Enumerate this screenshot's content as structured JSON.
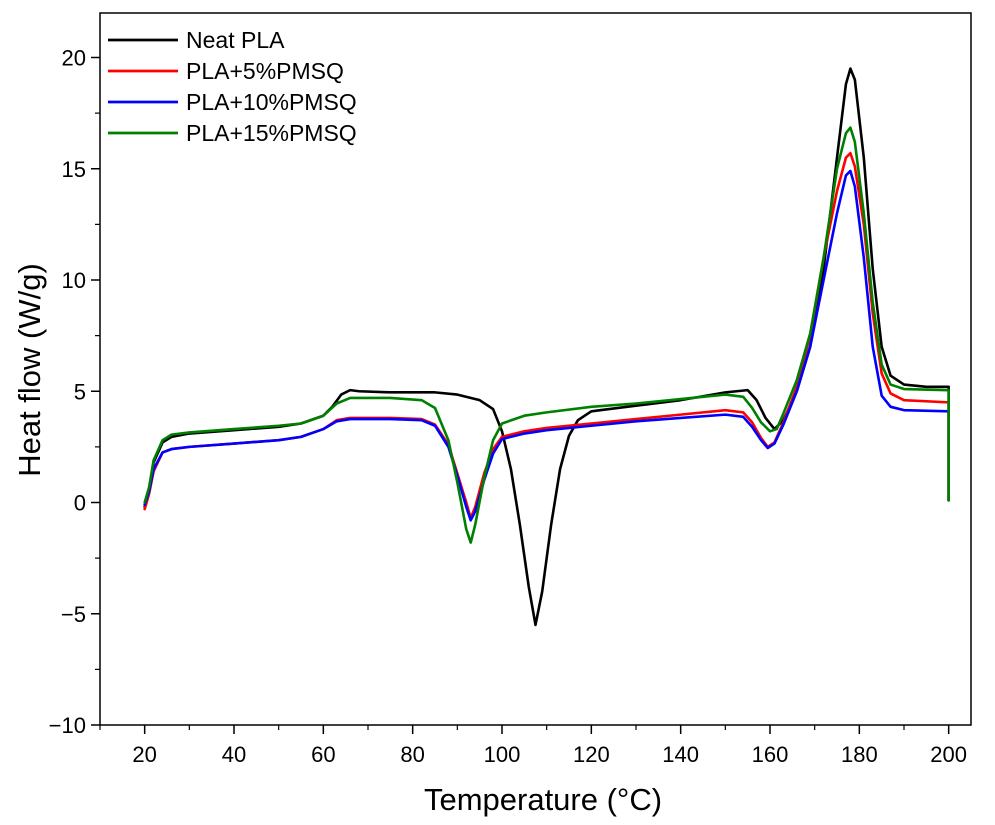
{
  "chart_data": {
    "type": "line",
    "xlabel": "Temperature (°C)",
    "ylabel": "Heat flow (W/g)",
    "xlim": [
      10,
      205
    ],
    "ylim": [
      -10,
      22
    ],
    "xticks": [
      20,
      40,
      60,
      80,
      100,
      120,
      140,
      160,
      180,
      200
    ],
    "xtick_labels": [
      "20",
      "40",
      "60",
      "80",
      "100",
      "120",
      "140",
      "160",
      "180",
      "200"
    ],
    "yticks": [
      -10,
      -5,
      0,
      5,
      10,
      15,
      20
    ],
    "ytick_labels": [
      "−10",
      "−5",
      "0",
      "5",
      "10",
      "15",
      "20"
    ],
    "legend_position": "top-left",
    "grid": false,
    "series": [
      {
        "name": "Neat PLA",
        "color": "#000000",
        "points": [
          [
            20,
            -0.2
          ],
          [
            21,
            0.5
          ],
          [
            22,
            1.8
          ],
          [
            24,
            2.7
          ],
          [
            26,
            2.95
          ],
          [
            30,
            3.1
          ],
          [
            40,
            3.25
          ],
          [
            50,
            3.4
          ],
          [
            55,
            3.55
          ],
          [
            60,
            3.9
          ],
          [
            62,
            4.3
          ],
          [
            64,
            4.85
          ],
          [
            66,
            5.05
          ],
          [
            68,
            5.0
          ],
          [
            75,
            4.95
          ],
          [
            85,
            4.95
          ],
          [
            90,
            4.85
          ],
          [
            95,
            4.6
          ],
          [
            98,
            4.2
          ],
          [
            100,
            3.2
          ],
          [
            102,
            1.5
          ],
          [
            104,
            -1.0
          ],
          [
            106,
            -3.8
          ],
          [
            107.5,
            -5.5
          ],
          [
            109,
            -4.0
          ],
          [
            111,
            -1.0
          ],
          [
            113,
            1.5
          ],
          [
            115,
            3.0
          ],
          [
            117,
            3.7
          ],
          [
            120,
            4.1
          ],
          [
            130,
            4.35
          ],
          [
            140,
            4.6
          ],
          [
            150,
            4.95
          ],
          [
            155,
            5.05
          ],
          [
            157,
            4.6
          ],
          [
            159,
            3.8
          ],
          [
            161,
            3.3
          ],
          [
            163,
            3.7
          ],
          [
            166,
            5.0
          ],
          [
            169,
            7.0
          ],
          [
            172,
            10.5
          ],
          [
            175,
            15.5
          ],
          [
            177,
            18.8
          ],
          [
            178,
            19.5
          ],
          [
            179,
            19.0
          ],
          [
            181,
            15.5
          ],
          [
            183,
            10.5
          ],
          [
            185,
            7.0
          ],
          [
            187,
            5.7
          ],
          [
            190,
            5.3
          ],
          [
            195,
            5.2
          ],
          [
            200,
            5.2
          ],
          [
            200,
            0.1
          ]
        ]
      },
      {
        "name": "PLA+5%PMSQ",
        "color": "#ff0000",
        "points": [
          [
            20,
            -0.3
          ],
          [
            21,
            0.4
          ],
          [
            22,
            1.4
          ],
          [
            24,
            2.25
          ],
          [
            26,
            2.4
          ],
          [
            30,
            2.5
          ],
          [
            40,
            2.65
          ],
          [
            50,
            2.8
          ],
          [
            55,
            2.95
          ],
          [
            60,
            3.3
          ],
          [
            63,
            3.7
          ],
          [
            66,
            3.8
          ],
          [
            75,
            3.8
          ],
          [
            82,
            3.75
          ],
          [
            85,
            3.5
          ],
          [
            88,
            2.6
          ],
          [
            90,
            1.3
          ],
          [
            92,
            0.0
          ],
          [
            93,
            -0.7
          ],
          [
            94,
            -0.2
          ],
          [
            96,
            1.3
          ],
          [
            98,
            2.4
          ],
          [
            100,
            2.95
          ],
          [
            105,
            3.2
          ],
          [
            110,
            3.35
          ],
          [
            120,
            3.55
          ],
          [
            130,
            3.75
          ],
          [
            140,
            3.95
          ],
          [
            150,
            4.15
          ],
          [
            154,
            4.05
          ],
          [
            156,
            3.6
          ],
          [
            158,
            2.9
          ],
          [
            159.5,
            2.5
          ],
          [
            161,
            2.7
          ],
          [
            163,
            3.6
          ],
          [
            166,
            5.2
          ],
          [
            169,
            7.5
          ],
          [
            172,
            11.0
          ],
          [
            175,
            14.0
          ],
          [
            177,
            15.5
          ],
          [
            178,
            15.7
          ],
          [
            179,
            15.1
          ],
          [
            181,
            12.5
          ],
          [
            183,
            8.5
          ],
          [
            185,
            5.8
          ],
          [
            187,
            4.9
          ],
          [
            190,
            4.6
          ],
          [
            200,
            4.5
          ],
          [
            200,
            0.1
          ]
        ]
      },
      {
        "name": "PLA+10%PMSQ",
        "color": "#0000ff",
        "points": [
          [
            20,
            -0.1
          ],
          [
            21,
            0.5
          ],
          [
            22,
            1.5
          ],
          [
            24,
            2.25
          ],
          [
            26,
            2.4
          ],
          [
            30,
            2.5
          ],
          [
            40,
            2.65
          ],
          [
            50,
            2.8
          ],
          [
            55,
            2.95
          ],
          [
            60,
            3.3
          ],
          [
            63,
            3.65
          ],
          [
            66,
            3.75
          ],
          [
            75,
            3.75
          ],
          [
            82,
            3.7
          ],
          [
            85,
            3.45
          ],
          [
            88,
            2.5
          ],
          [
            90,
            1.2
          ],
          [
            92,
            -0.2
          ],
          [
            93,
            -0.8
          ],
          [
            94,
            -0.4
          ],
          [
            96,
            1.0
          ],
          [
            98,
            2.2
          ],
          [
            100,
            2.85
          ],
          [
            105,
            3.1
          ],
          [
            110,
            3.25
          ],
          [
            120,
            3.45
          ],
          [
            130,
            3.65
          ],
          [
            140,
            3.8
          ],
          [
            150,
            3.95
          ],
          [
            154,
            3.85
          ],
          [
            156,
            3.4
          ],
          [
            158,
            2.8
          ],
          [
            159.5,
            2.45
          ],
          [
            161,
            2.65
          ],
          [
            163,
            3.5
          ],
          [
            166,
            5.0
          ],
          [
            169,
            7.0
          ],
          [
            172,
            10.0
          ],
          [
            175,
            13.0
          ],
          [
            177,
            14.7
          ],
          [
            178,
            14.9
          ],
          [
            179,
            14.2
          ],
          [
            181,
            11.0
          ],
          [
            183,
            7.0
          ],
          [
            185,
            4.8
          ],
          [
            187,
            4.3
          ],
          [
            190,
            4.15
          ],
          [
            200,
            4.1
          ],
          [
            200,
            0.1
          ]
        ]
      },
      {
        "name": "PLA+15%PMSQ",
        "color": "#008000",
        "points": [
          [
            20,
            0.0
          ],
          [
            21,
            0.7
          ],
          [
            22,
            1.9
          ],
          [
            24,
            2.8
          ],
          [
            26,
            3.05
          ],
          [
            30,
            3.15
          ],
          [
            40,
            3.3
          ],
          [
            50,
            3.45
          ],
          [
            55,
            3.55
          ],
          [
            60,
            3.9
          ],
          [
            63,
            4.45
          ],
          [
            66,
            4.7
          ],
          [
            75,
            4.7
          ],
          [
            82,
            4.6
          ],
          [
            85,
            4.25
          ],
          [
            88,
            2.8
          ],
          [
            90,
            0.9
          ],
          [
            92,
            -1.2
          ],
          [
            93,
            -1.8
          ],
          [
            94,
            -1.0
          ],
          [
            96,
            1.1
          ],
          [
            98,
            2.8
          ],
          [
            100,
            3.55
          ],
          [
            105,
            3.9
          ],
          [
            110,
            4.05
          ],
          [
            120,
            4.3
          ],
          [
            130,
            4.45
          ],
          [
            140,
            4.65
          ],
          [
            150,
            4.85
          ],
          [
            154,
            4.75
          ],
          [
            156,
            4.25
          ],
          [
            158,
            3.6
          ],
          [
            160,
            3.2
          ],
          [
            161.5,
            3.3
          ],
          [
            163,
            4.0
          ],
          [
            166,
            5.5
          ],
          [
            169,
            7.6
          ],
          [
            172,
            11.0
          ],
          [
            175,
            15.0
          ],
          [
            177,
            16.6
          ],
          [
            178,
            16.85
          ],
          [
            179,
            16.2
          ],
          [
            181,
            13.0
          ],
          [
            183,
            9.0
          ],
          [
            185,
            6.2
          ],
          [
            187,
            5.3
          ],
          [
            190,
            5.1
          ],
          [
            200,
            5.05
          ],
          [
            200,
            0.1
          ]
        ]
      }
    ]
  }
}
